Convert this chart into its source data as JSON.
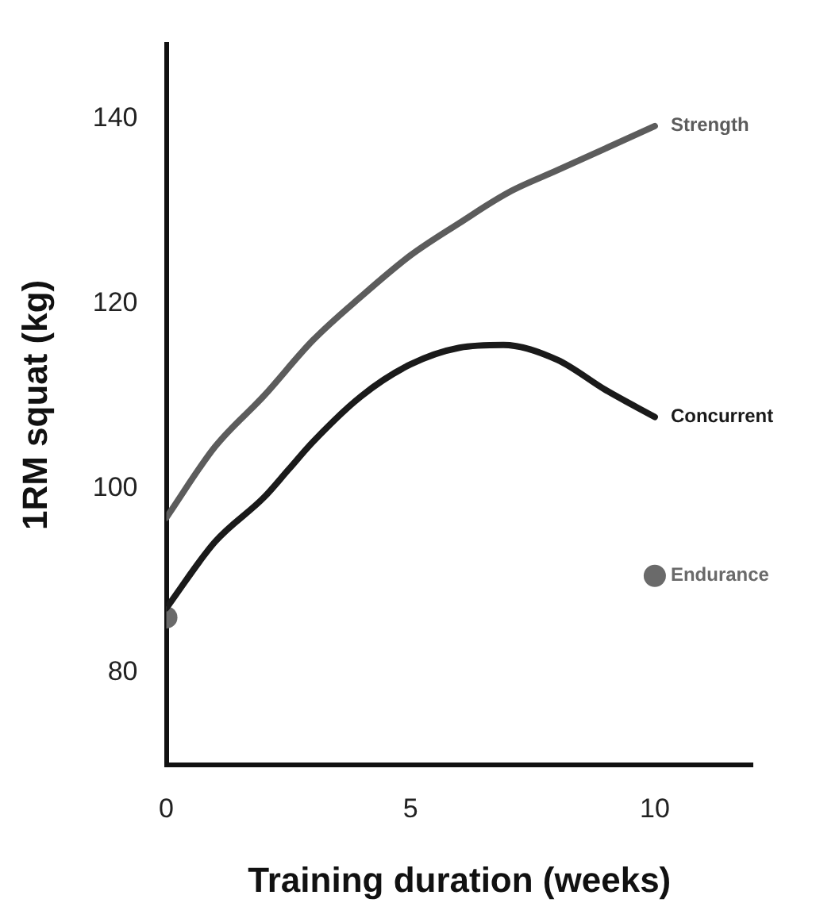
{
  "chart_data": {
    "type": "line",
    "xlabel": "Training duration (weeks)",
    "ylabel": "1RM squat (kg)",
    "xlim": [
      0,
      12
    ],
    "xticks": [
      0,
      5,
      10
    ],
    "ylim": [
      70,
      148
    ],
    "yticks": [
      80,
      100,
      120,
      140
    ],
    "grid": false,
    "legend": false,
    "marker": "none",
    "line_style": "solid",
    "series": [
      {
        "name": "Strength",
        "color": "#5c5c5c",
        "x": [
          0,
          1,
          2,
          3,
          4,
          5,
          6,
          7,
          8,
          9,
          10
        ],
        "values": [
          96.8,
          104.5,
          110,
          116,
          120.8,
          125.2,
          128.7,
          132,
          134.4,
          136.8,
          139.2
        ]
      },
      {
        "name": "Concurrent",
        "color": "#1a1a1a",
        "x": [
          0,
          1,
          2,
          2.5,
          3,
          4,
          5,
          6,
          6.9,
          8,
          9,
          10
        ],
        "values": [
          87,
          94.2,
          99,
          102,
          105,
          110,
          113.4,
          115.2,
          115.5,
          113.9,
          110.6,
          107.7
        ]
      },
      {
        "name": "Endurance",
        "type": "scatter",
        "marker": "circle",
        "color": "#6a6a6a",
        "x": [
          0,
          10
        ],
        "values": [
          86,
          90.5
        ]
      }
    ]
  }
}
